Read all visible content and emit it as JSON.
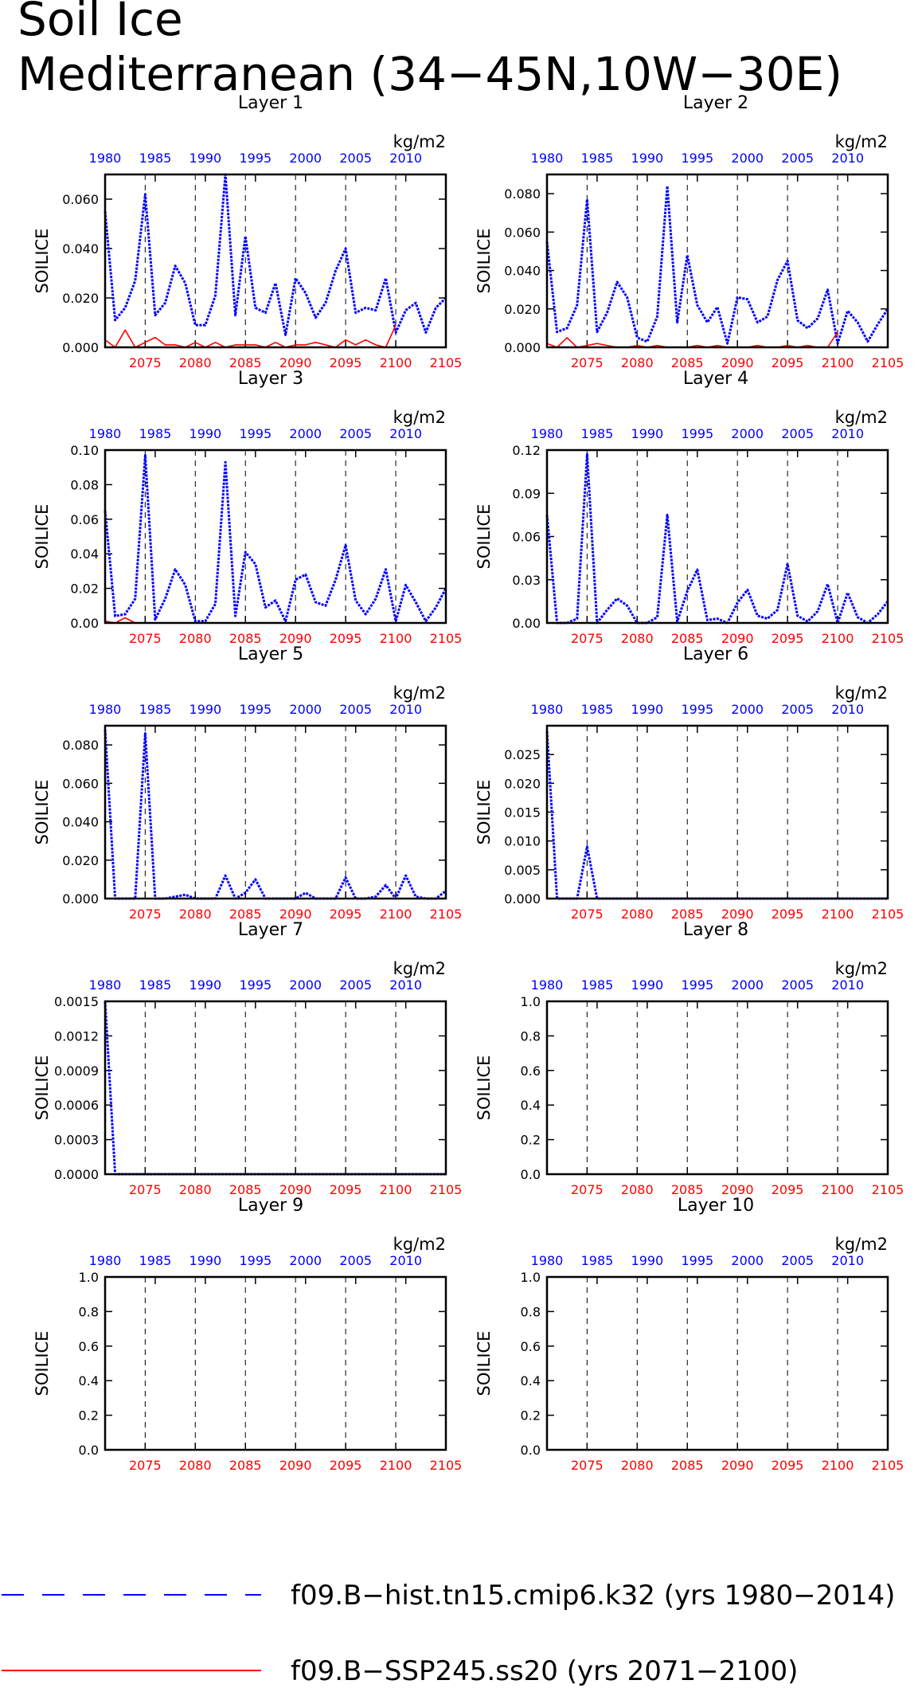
{
  "title": {
    "line1": "Soil Ice",
    "line2": "Mediterranean (34−45N,10W−30E)"
  },
  "colors": {
    "hist": "#0000ff",
    "ssp": "#ff0000",
    "axis": "#000000",
    "grid": "#000000"
  },
  "axes": {
    "top_ticks": [
      "1980",
      "1985",
      "1990",
      "1995",
      "2000",
      "2005",
      "2010"
    ],
    "top_years": [
      1980,
      1985,
      1990,
      1995,
      2000,
      2005,
      2010
    ],
    "bottom_ticks": [
      "2075",
      "2080",
      "2085",
      "2090",
      "2095",
      "2100",
      "2105"
    ],
    "bottom_years": [
      2075,
      2080,
      2085,
      2090,
      2095,
      2100,
      2105
    ],
    "units": "kg/m2",
    "ylabel": "SOILICE"
  },
  "legend": [
    {
      "label": "f09.B−hist.tn15.cmip6.k32 (yrs 1980−2014)",
      "style": "dashed",
      "color": "#0000ff"
    },
    {
      "label": "f09.B−SSP245.ss20 (yrs 2071−2100)",
      "style": "solid",
      "color": "#ff0000"
    }
  ],
  "chart_data": [
    {
      "type": "line",
      "title": "Layer 1",
      "ylabel": "SOILICE",
      "units": "kg/m2",
      "ylim": [
        0,
        0.07
      ],
      "yticks": [
        0.0,
        0.02,
        0.04,
        0.06
      ],
      "yticklabels": [
        "0.000",
        "0.020",
        "0.040",
        "0.060"
      ],
      "series": [
        {
          "name": "f09.B−hist.tn15.cmip6.k32",
          "years": "1980-2014",
          "values": [
            0.055,
            0.011,
            0.016,
            0.027,
            0.062,
            0.013,
            0.018,
            0.033,
            0.026,
            0.009,
            0.009,
            0.021,
            0.07,
            0.013,
            0.045,
            0.016,
            0.014,
            0.026,
            0.005,
            0.028,
            0.022,
            0.012,
            0.018,
            0.031,
            0.04,
            0.014,
            0.016,
            0.015,
            0.028,
            0.006,
            0.015,
            0.018,
            0.006,
            0.016,
            0.02
          ]
        },
        {
          "name": "f09.B−SSP245.ss20",
          "years": "2071-2100",
          "values": [
            0.003,
            0.0,
            0.007,
            0.0,
            0.002,
            0.004,
            0.001,
            0.001,
            0.0,
            0.002,
            0.0,
            0.002,
            0.0,
            0.001,
            0.001,
            0.001,
            0.0,
            0.002,
            0.0,
            0.001,
            0.001,
            0.002,
            0.001,
            0.0,
            0.003,
            0.001,
            0.003,
            0.001,
            0.0,
            0.009
          ]
        }
      ]
    },
    {
      "type": "line",
      "title": "Layer 2",
      "ylabel": "SOILICE",
      "units": "kg/m2",
      "ylim": [
        0,
        0.09
      ],
      "yticks": [
        0.0,
        0.02,
        0.04,
        0.06,
        0.08
      ],
      "yticklabels": [
        "0.000",
        "0.020",
        "0.040",
        "0.060",
        "0.080"
      ],
      "series": [
        {
          "name": "f09.B−hist.tn15.cmip6.k32",
          "years": "1980-2014",
          "values": [
            0.055,
            0.008,
            0.01,
            0.022,
            0.077,
            0.008,
            0.018,
            0.034,
            0.026,
            0.005,
            0.003,
            0.016,
            0.084,
            0.013,
            0.048,
            0.022,
            0.013,
            0.021,
            0.002,
            0.026,
            0.025,
            0.013,
            0.016,
            0.035,
            0.045,
            0.014,
            0.01,
            0.015,
            0.03,
            0.002,
            0.019,
            0.013,
            0.003,
            0.012,
            0.02
          ]
        },
        {
          "name": "f09.B−SSP245.ss20",
          "years": "2071-2100",
          "values": [
            0.002,
            0.0,
            0.005,
            0.0,
            0.001,
            0.002,
            0.001,
            0.0,
            0.0,
            0.001,
            0.0,
            0.001,
            0.0,
            0.0,
            0.0,
            0.001,
            0.0,
            0.001,
            0.0,
            0.0,
            0.0,
            0.001,
            0.0,
            0.0,
            0.001,
            0.0,
            0.001,
            0.0,
            0.0,
            0.008
          ]
        }
      ]
    },
    {
      "type": "line",
      "title": "Layer 3",
      "ylabel": "SOILICE",
      "units": "kg/m2",
      "ylim": [
        0,
        0.1
      ],
      "yticks": [
        0.0,
        0.02,
        0.04,
        0.06,
        0.08,
        0.1
      ],
      "yticklabels": [
        "0.00",
        "0.02",
        "0.04",
        "0.06",
        "0.08",
        "0.10"
      ],
      "series": [
        {
          "name": "f09.B−hist.tn15.cmip6.k32",
          "years": "1980-2014",
          "values": [
            0.065,
            0.004,
            0.005,
            0.014,
            0.097,
            0.002,
            0.014,
            0.031,
            0.022,
            0.001,
            0.001,
            0.011,
            0.093,
            0.004,
            0.041,
            0.034,
            0.009,
            0.013,
            0.001,
            0.025,
            0.028,
            0.012,
            0.01,
            0.025,
            0.045,
            0.013,
            0.005,
            0.014,
            0.031,
            0.001,
            0.022,
            0.012,
            0.001,
            0.009,
            0.02
          ]
        },
        {
          "name": "f09.B−SSP245.ss20",
          "years": "2071-2100",
          "values": [
            0.001,
            0.0,
            0.003,
            0.0,
            0.0,
            0.0,
            0.0,
            0.0,
            0.0,
            0.0,
            0.0,
            0.0,
            0.0,
            0.0,
            0.0,
            0.0,
            0.0,
            0.0,
            0.0,
            0.0,
            0.0,
            0.0,
            0.0,
            0.0,
            0.0,
            0.0,
            0.0,
            0.0,
            0.0,
            0.0
          ]
        }
      ]
    },
    {
      "type": "line",
      "title": "Layer 4",
      "ylabel": "SOILICE",
      "units": "kg/m2",
      "ylim": [
        0,
        0.12
      ],
      "yticks": [
        0.0,
        0.03,
        0.06,
        0.09,
        0.12
      ],
      "yticklabels": [
        "0.00",
        "0.03",
        "0.06",
        "0.09",
        "0.12"
      ],
      "series": [
        {
          "name": "f09.B−hist.tn15.cmip6.k32",
          "years": "1980-2014",
          "values": [
            0.075,
            0.0,
            0.0,
            0.003,
            0.117,
            0.0,
            0.009,
            0.017,
            0.012,
            0.0,
            0.0,
            0.004,
            0.075,
            0.001,
            0.022,
            0.037,
            0.002,
            0.003,
            0.0,
            0.014,
            0.023,
            0.005,
            0.003,
            0.009,
            0.041,
            0.005,
            0.001,
            0.008,
            0.027,
            0.0,
            0.021,
            0.004,
            0.0,
            0.006,
            0.015
          ]
        },
        {
          "name": "f09.B−SSP245.ss20",
          "years": "2071-2100",
          "values": [
            0.0,
            0.0,
            0.0,
            0.0,
            0.0,
            0.0,
            0.0,
            0.0,
            0.0,
            0.0,
            0.0,
            0.0,
            0.0,
            0.0,
            0.0,
            0.0,
            0.0,
            0.0,
            0.0,
            0.0,
            0.0,
            0.0,
            0.0,
            0.0,
            0.0,
            0.0,
            0.0,
            0.0,
            0.0,
            0.0
          ]
        }
      ]
    },
    {
      "type": "line",
      "title": "Layer 5",
      "ylabel": "SOILICE",
      "units": "kg/m2",
      "ylim": [
        0,
        0.09
      ],
      "yticks": [
        0.0,
        0.02,
        0.04,
        0.06,
        0.08
      ],
      "yticklabels": [
        "0.000",
        "0.020",
        "0.040",
        "0.060",
        "0.080"
      ],
      "series": [
        {
          "name": "f09.B−hist.tn15.cmip6.k32",
          "years": "1980-2014",
          "values": [
            0.088,
            0.0,
            0.0,
            0.0,
            0.086,
            0.0,
            0.0,
            0.001,
            0.002,
            0.0,
            0.0,
            0.0,
            0.012,
            0.0,
            0.003,
            0.01,
            0.0,
            0.0,
            0.0,
            0.0,
            0.003,
            0.0,
            0.0,
            0.0,
            0.011,
            0.0,
            0.0,
            0.001,
            0.007,
            0.0,
            0.012,
            0.001,
            0.0,
            0.0,
            0.004
          ]
        },
        {
          "name": "f09.B−SSP245.ss20",
          "years": "2071-2100",
          "values": [
            0.0,
            0.0,
            0.0,
            0.0,
            0.0,
            0.0,
            0.0,
            0.0,
            0.0,
            0.0,
            0.0,
            0.0,
            0.0,
            0.0,
            0.0,
            0.0,
            0.0,
            0.0,
            0.0,
            0.0,
            0.0,
            0.0,
            0.0,
            0.0,
            0.0,
            0.0,
            0.0,
            0.0,
            0.0,
            0.0
          ]
        }
      ]
    },
    {
      "type": "line",
      "title": "Layer 6",
      "ylabel": "SOILICE",
      "units": "kg/m2",
      "ylim": [
        0,
        0.03
      ],
      "yticks": [
        0.0,
        0.005,
        0.01,
        0.015,
        0.02,
        0.025
      ],
      "yticklabels": [
        "0.000",
        "0.005",
        "0.010",
        "0.015",
        "0.020",
        "0.025"
      ],
      "series": [
        {
          "name": "f09.B−hist.tn15.cmip6.k32",
          "years": "1980-2014",
          "values": [
            0.029,
            0.0,
            0.0,
            0.0,
            0.009,
            0.0,
            0.0,
            0.0,
            0.0,
            0.0,
            0.0,
            0.0,
            0.0,
            0.0,
            0.0,
            0.0,
            0.0,
            0.0,
            0.0,
            0.0,
            0.0,
            0.0,
            0.0,
            0.0,
            0.0,
            0.0,
            0.0,
            0.0,
            0.0,
            0.0,
            0.0,
            0.0,
            0.0,
            0.0,
            0.0
          ]
        },
        {
          "name": "f09.B−SSP245.ss20",
          "years": "2071-2100",
          "values": [
            0.0,
            0.0,
            0.0,
            0.0,
            0.0,
            0.0,
            0.0,
            0.0,
            0.0,
            0.0,
            0.0,
            0.0,
            0.0,
            0.0,
            0.0,
            0.0,
            0.0,
            0.0,
            0.0,
            0.0,
            0.0,
            0.0,
            0.0,
            0.0,
            0.0,
            0.0,
            0.0,
            0.0,
            0.0,
            0.0
          ]
        }
      ]
    },
    {
      "type": "line",
      "title": "Layer 7",
      "ylabel": "SOILICE",
      "units": "kg/m2",
      "ylim": [
        0,
        0.0015
      ],
      "yticks": [
        0.0,
        0.0003,
        0.0006,
        0.0009,
        0.0012,
        0.0015
      ],
      "yticklabels": [
        "0.0000",
        "0.0003",
        "0.0006",
        "0.0009",
        "0.0012",
        "0.0015"
      ],
      "series": [
        {
          "name": "f09.B−hist.tn15.cmip6.k32",
          "years": "1980-2014",
          "values": [
            0.0015,
            0.0,
            0.0,
            0.0,
            0.0,
            0.0,
            0.0,
            0.0,
            0.0,
            0.0,
            0.0,
            0.0,
            0.0,
            0.0,
            0.0,
            0.0,
            0.0,
            0.0,
            0.0,
            0.0,
            0.0,
            0.0,
            0.0,
            0.0,
            0.0,
            0.0,
            0.0,
            0.0,
            0.0,
            0.0,
            0.0,
            0.0,
            0.0,
            0.0,
            0.0
          ]
        },
        {
          "name": "f09.B−SSP245.ss20",
          "years": "2071-2100",
          "values": [
            0.0,
            0.0,
            0.0,
            0.0,
            0.0,
            0.0,
            0.0,
            0.0,
            0.0,
            0.0,
            0.0,
            0.0,
            0.0,
            0.0,
            0.0,
            0.0,
            0.0,
            0.0,
            0.0,
            0.0,
            0.0,
            0.0,
            0.0,
            0.0,
            0.0,
            0.0,
            0.0,
            0.0,
            0.0,
            0.0
          ]
        }
      ]
    },
    {
      "type": "line",
      "title": "Layer 8",
      "ylabel": "SOILICE",
      "units": "kg/m2",
      "ylim": [
        0,
        1.0
      ],
      "yticks": [
        0.0,
        0.2,
        0.4,
        0.6,
        0.8,
        1.0
      ],
      "yticklabels": [
        "0.0",
        "0.2",
        "0.4",
        "0.6",
        "0.8",
        "1.0"
      ],
      "series": []
    },
    {
      "type": "line",
      "title": "Layer 9",
      "ylabel": "SOILICE",
      "units": "kg/m2",
      "ylim": [
        0,
        1.0
      ],
      "yticks": [
        0.0,
        0.2,
        0.4,
        0.6,
        0.8,
        1.0
      ],
      "yticklabels": [
        "0.0",
        "0.2",
        "0.4",
        "0.6",
        "0.8",
        "1.0"
      ],
      "series": []
    },
    {
      "type": "line",
      "title": "Layer 10",
      "ylabel": "SOILICE",
      "units": "kg/m2",
      "ylim": [
        0,
        1.0
      ],
      "yticks": [
        0.0,
        0.2,
        0.4,
        0.6,
        0.8,
        1.0
      ],
      "yticklabels": [
        "0.0",
        "0.2",
        "0.4",
        "0.6",
        "0.8",
        "1.0"
      ],
      "series": []
    }
  ]
}
